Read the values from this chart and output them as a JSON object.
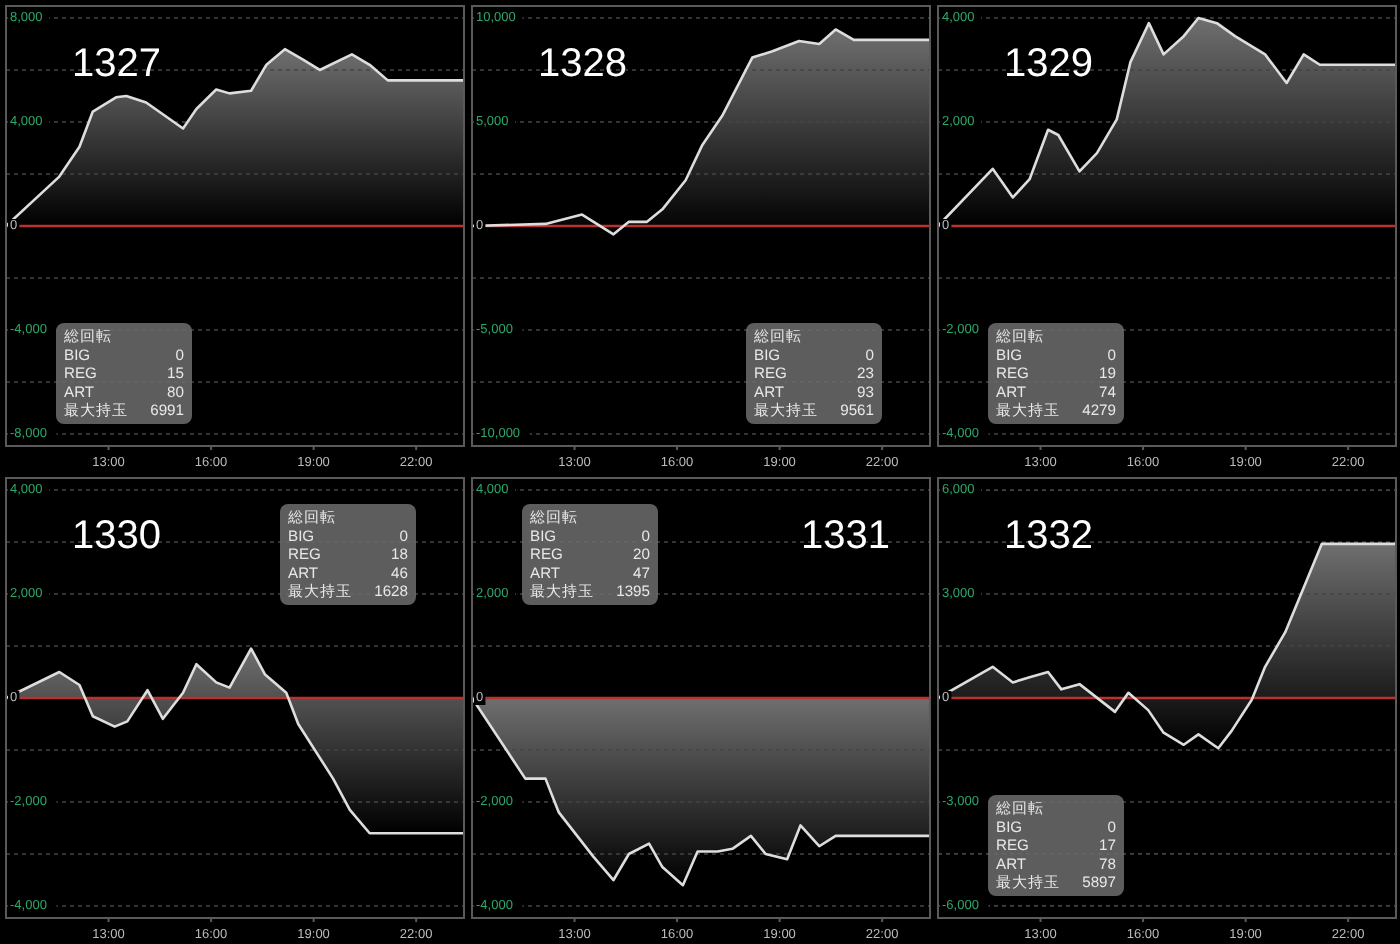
{
  "chart_data": [
    {
      "type": "area",
      "title": "1327",
      "x": [
        10,
        11.56,
        12.15,
        12.54,
        13.22,
        13.52,
        14.1,
        15.18,
        15.57,
        16.15,
        16.54,
        17.17,
        17.62,
        18.16,
        18.69,
        19.18,
        20.12,
        20.64,
        21.17,
        23.38
      ],
      "series": [
        {
          "color": "#dddddd",
          "values": [
            0,
            1900,
            3050,
            4400,
            4950,
            5000,
            4750,
            3750,
            4500,
            5250,
            5100,
            5200,
            6200,
            6800,
            6400,
            6000,
            6600,
            6200,
            5600,
            5600
          ]
        }
      ],
      "xlim": [
        10,
        23.4
      ],
      "xticks": [
        {
          "value": 13,
          "label": "13:00"
        },
        {
          "value": 16,
          "label": "16:00"
        },
        {
          "value": 19,
          "label": "19:00"
        },
        {
          "value": 22,
          "label": "22:00"
        }
      ],
      "ylim": [
        -8460,
        8460
      ],
      "yticks": [
        {
          "value": -8000,
          "label": "-8,000"
        },
        {
          "value": -6000,
          "label": null
        },
        {
          "value": -4000,
          "label": "-4,000"
        },
        {
          "value": -2000,
          "label": null
        },
        {
          "value": 2000,
          "label": null
        },
        {
          "value": 4000,
          "label": "4,000"
        },
        {
          "value": 6000,
          "label": null
        },
        {
          "value": 8000,
          "label": "8,000"
        }
      ],
      "grid": "y",
      "ref_lines": [
        {
          "axis": "y",
          "value": 0,
          "label": "0",
          "color": "#b83232"
        }
      ],
      "annotations": [
        "総回転",
        "BIG 0",
        "REG 15",
        "ART 80",
        "最大持玉 6991"
      ]
    },
    {
      "type": "area",
      "title": "1328",
      "x": [
        10,
        12.15,
        13.22,
        14.14,
        14.59,
        15.12,
        15.57,
        16.25,
        16.74,
        17.32,
        18.2,
        18.79,
        19.57,
        20.16,
        20.64,
        21.17,
        23.38
      ],
      "series": [
        {
          "color": "#dddddd",
          "values": [
            0,
            100,
            550,
            -400,
            200,
            200,
            800,
            2200,
            3900,
            5300,
            8100,
            8400,
            8900,
            8750,
            9450,
            8950,
            8950
          ]
        }
      ],
      "xlim": [
        10,
        23.4
      ],
      "xticks": [
        {
          "value": 13,
          "label": "13:00"
        },
        {
          "value": 16,
          "label": "16:00"
        },
        {
          "value": 19,
          "label": "19:00"
        },
        {
          "value": 22,
          "label": "22:00"
        }
      ],
      "ylim": [
        -10580,
        10580
      ],
      "yticks": [
        {
          "value": -10000,
          "label": "-10,000"
        },
        {
          "value": -7500,
          "label": null
        },
        {
          "value": -5000,
          "label": "-5,000"
        },
        {
          "value": -2500,
          "label": null
        },
        {
          "value": 2500,
          "label": null
        },
        {
          "value": 5000,
          "label": "5,000"
        },
        {
          "value": 7500,
          "label": null
        },
        {
          "value": 10000,
          "label": "10,000"
        }
      ],
      "grid": "y",
      "ref_lines": [
        {
          "axis": "y",
          "value": 0,
          "label": "0",
          "color": "#b83232"
        }
      ],
      "annotations": [
        "総回転",
        "BIG 0",
        "REG 23",
        "ART 93",
        "最大持玉 9561"
      ]
    },
    {
      "type": "area",
      "title": "1329",
      "x": [
        10,
        11.6,
        12.19,
        12.68,
        13.22,
        13.52,
        14.14,
        14.65,
        15.23,
        15.63,
        16.17,
        16.6,
        17.19,
        17.62,
        18.16,
        18.69,
        19.57,
        20.2,
        20.7,
        21.17,
        23.38
      ],
      "series": [
        {
          "color": "#dddddd",
          "values": [
            0,
            1100,
            550,
            900,
            1850,
            1750,
            1050,
            1400,
            2050,
            3150,
            3900,
            3300,
            3650,
            4000,
            3900,
            3650,
            3300,
            2750,
            3300,
            3100,
            3100
          ]
        }
      ],
      "xlim": [
        10,
        23.4
      ],
      "xticks": [
        {
          "value": 13,
          "label": "13:00"
        },
        {
          "value": 16,
          "label": "16:00"
        },
        {
          "value": 19,
          "label": "19:00"
        },
        {
          "value": 22,
          "label": "22:00"
        }
      ],
      "ylim": [
        -4230,
        4230
      ],
      "yticks": [
        {
          "value": -4000,
          "label": "-4,000"
        },
        {
          "value": -3000,
          "label": null
        },
        {
          "value": -2000,
          "label": "-2,000"
        },
        {
          "value": -1000,
          "label": null
        },
        {
          "value": 1000,
          "label": null
        },
        {
          "value": 2000,
          "label": "2,000"
        },
        {
          "value": 3000,
          "label": null
        },
        {
          "value": 4000,
          "label": "4,000"
        }
      ],
      "grid": "y",
      "ref_lines": [
        {
          "axis": "y",
          "value": 0,
          "label": "0",
          "color": "#b83232"
        }
      ],
      "annotations": [
        "総回転",
        "BIG 0",
        "REG 19",
        "ART 74",
        "最大持玉 4279"
      ]
    },
    {
      "type": "area",
      "title": "1330",
      "x": [
        10,
        11.56,
        12.15,
        12.54,
        13.18,
        13.55,
        14.14,
        14.59,
        15.18,
        15.57,
        16.15,
        16.54,
        17.17,
        17.58,
        18.2,
        18.55,
        19.57,
        20.06,
        20.64,
        23.38
      ],
      "series": [
        {
          "color": "#dddddd",
          "values": [
            0,
            500,
            250,
            -350,
            -550,
            -450,
            150,
            -400,
            100,
            650,
            300,
            200,
            950,
            450,
            100,
            -500,
            -1550,
            -2150,
            -2600,
            -2600
          ]
        }
      ],
      "xlim": [
        10,
        23.4
      ],
      "xticks": [
        {
          "value": 13,
          "label": "13:00"
        },
        {
          "value": 16,
          "label": "16:00"
        },
        {
          "value": 19,
          "label": "19:00"
        },
        {
          "value": 22,
          "label": "22:00"
        }
      ],
      "ylim": [
        -4230,
        4230
      ],
      "yticks": [
        {
          "value": -4000,
          "label": "-4,000"
        },
        {
          "value": -3000,
          "label": null
        },
        {
          "value": -2000,
          "label": "-2,000"
        },
        {
          "value": -1000,
          "label": null
        },
        {
          "value": 1000,
          "label": null
        },
        {
          "value": 2000,
          "label": "2,000"
        },
        {
          "value": 3000,
          "label": null
        },
        {
          "value": 4000,
          "label": "4,000"
        }
      ],
      "grid": "y",
      "ref_lines": [
        {
          "axis": "y",
          "value": 0,
          "label": "0",
          "color": "#b83232"
        }
      ],
      "annotations": [
        "総回転",
        "BIG 0",
        "REG 18",
        "ART 46",
        "最大持玉 1628"
      ]
    },
    {
      "type": "area",
      "title": "1331",
      "x": [
        10,
        11.56,
        12.15,
        12.54,
        13.55,
        14.14,
        14.59,
        15.18,
        15.57,
        16.17,
        16.6,
        17.19,
        17.62,
        18.16,
        18.59,
        19.22,
        19.61,
        20.16,
        20.64,
        23.38
      ],
      "series": [
        {
          "color": "#dddddd",
          "values": [
            0,
            -1550,
            -1550,
            -2200,
            -3050,
            -3500,
            -3000,
            -2800,
            -3250,
            -3600,
            -2950,
            -2950,
            -2900,
            -2650,
            -3000,
            -3100,
            -2450,
            -2850,
            -2650,
            -2650
          ]
        }
      ],
      "xlim": [
        10,
        23.4
      ],
      "xticks": [
        {
          "value": 13,
          "label": "13:00"
        },
        {
          "value": 16,
          "label": "16:00"
        },
        {
          "value": 19,
          "label": "19:00"
        },
        {
          "value": 22,
          "label": "22:00"
        }
      ],
      "ylim": [
        -4230,
        4230
      ],
      "yticks": [
        {
          "value": -4000,
          "label": "-4,000"
        },
        {
          "value": -3000,
          "label": null
        },
        {
          "value": -2000,
          "label": "-2,000"
        },
        {
          "value": -1000,
          "label": null
        },
        {
          "value": 1000,
          "label": null
        },
        {
          "value": 2000,
          "label": "2,000"
        },
        {
          "value": 3000,
          "label": null
        },
        {
          "value": 4000,
          "label": "4,000"
        }
      ],
      "grid": "y",
      "ref_lines": [
        {
          "axis": "y",
          "value": 0,
          "label": "0",
          "color": "#b83232"
        }
      ],
      "annotations": [
        "総回転",
        "BIG 0",
        "REG 20",
        "ART 47",
        "最大持玉 1395"
      ]
    },
    {
      "type": "area",
      "title": "1332",
      "x": [
        10,
        11.6,
        12.19,
        12.68,
        13.22,
        13.61,
        14.14,
        15.18,
        15.57,
        16.15,
        16.6,
        17.19,
        17.62,
        18.2,
        18.59,
        19.18,
        19.57,
        20.16,
        21.23,
        23.38
      ],
      "series": [
        {
          "color": "#dddddd",
          "values": [
            0,
            900,
            450,
            600,
            750,
            250,
            400,
            -400,
            150,
            -350,
            -1000,
            -1350,
            -1050,
            -1450,
            -950,
            -50,
            900,
            1900,
            4450,
            4450
          ]
        }
      ],
      "xlim": [
        10,
        23.4
      ],
      "xticks": [
        {
          "value": 13,
          "label": "13:00"
        },
        {
          "value": 16,
          "label": "16:00"
        },
        {
          "value": 19,
          "label": "19:00"
        },
        {
          "value": 22,
          "label": "22:00"
        }
      ],
      "ylim": [
        -6350,
        6350
      ],
      "yticks": [
        {
          "value": -6000,
          "label": "-6,000"
        },
        {
          "value": -4500,
          "label": null
        },
        {
          "value": -3000,
          "label": "-3,000"
        },
        {
          "value": -1500,
          "label": null
        },
        {
          "value": 1500,
          "label": null
        },
        {
          "value": 3000,
          "label": "3,000"
        },
        {
          "value": 4500,
          "label": null
        },
        {
          "value": 6000,
          "label": "6,000"
        }
      ],
      "grid": "y",
      "ref_lines": [
        {
          "axis": "y",
          "value": 0,
          "label": "0",
          "color": "#b83232"
        }
      ],
      "annotations": [
        "総回転",
        "BIG 0",
        "REG 17",
        "ART 78",
        "最大持玉 5897"
      ]
    }
  ]
}
